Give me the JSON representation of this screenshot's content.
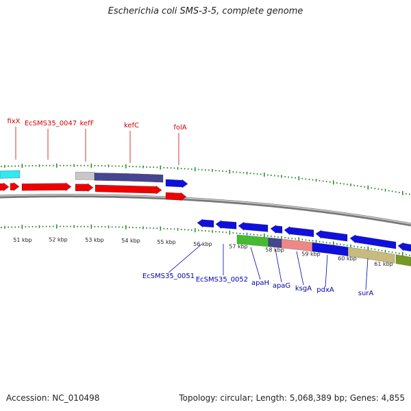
{
  "title": "Escherichia coli SMS-3-5, complete genome",
  "footer": {
    "accession": "Accession: NC_010498",
    "summary": "Topology: circular; Length: 5,068,389 bp; Genes: 4,855"
  },
  "colors": {
    "forward_arrow": "#ee0000",
    "reverse_arrow": "#1010dd",
    "top_label": "#cc0000",
    "bottom_label": "#0000aa",
    "tick": "#2a8a2a",
    "backbone": "#888888",
    "cyan_segment": "#33e8f0",
    "gray_segment": "#c8c8c8",
    "slate_segment": "#454590",
    "green_segment": "#44bb33",
    "pink_segment": "#ee8888",
    "tan_segment": "#c8bb80",
    "olive_segment": "#779922"
  },
  "ruler": {
    "labels": [
      "51 kbp",
      "52 kbp",
      "53 kbp",
      "54 kbp",
      "55 kbp",
      "56 kbp",
      "57 kbp",
      "58 kbp",
      "59 kbp",
      "60 kbp",
      "61 kbp"
    ]
  },
  "top_genes": [
    "fixX",
    "EcSMS35_0047",
    "kefF",
    "kefC",
    "folA"
  ],
  "bottom_genes": [
    "EcSMS35_0051",
    "EcSMS35_0052",
    "apaH",
    "apaG",
    "ksgA",
    "pdxA",
    "surA"
  ]
}
